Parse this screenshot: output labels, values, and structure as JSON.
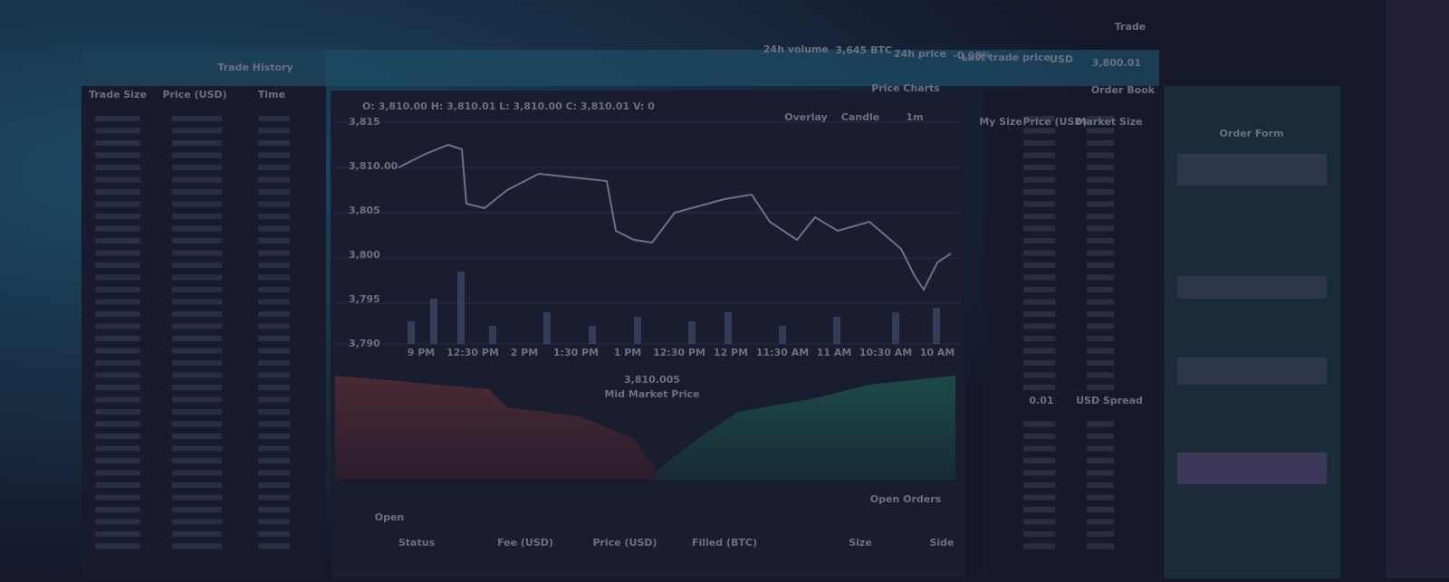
{
  "header": {
    "tab": "Trade",
    "last_price": "3,800.01",
    "last_price_unit": "USD",
    "last_price_label": "Last trade price",
    "change": "-0.08%",
    "change_label": "24h price",
    "volume": "3,645 BTC",
    "volume_label": "24h volume"
  },
  "trade_history": {
    "title": "Trade History",
    "columns": [
      "Trade Size",
      "Price (USD)",
      "Time"
    ]
  },
  "price_chart": {
    "title": "Price Charts",
    "ohlc": "O: 3,810.00   H: 3,810.01   L: 3,810.00   C: 3,810.01   V: 0",
    "controls": [
      "1m",
      "Candle",
      "Overlay"
    ],
    "y_labels": [
      "3,815",
      "3,810.00",
      "3,805",
      "3,800",
      "3,795",
      "3,790"
    ],
    "x_labels": [
      "9 PM",
      "12:30 PM",
      "2 PM",
      "1:30 PM",
      "1 PM",
      "12:30 PM",
      "12 PM",
      "11:30 AM",
      "11 AM",
      "10:30 AM",
      "10 AM"
    ]
  },
  "depth_chart": {
    "mid_price": "3,810.005",
    "mid_label": "Mid Market Price"
  },
  "order_book": {
    "title": "Order Book",
    "columns": [
      "Market Size",
      "Price (USD)",
      "My Size"
    ],
    "spread_label": "USD Spread",
    "spread": "0.01"
  },
  "open_orders": {
    "title": "Open Orders",
    "tab": "Open",
    "columns": [
      "Side",
      "Size",
      "Filled (BTC)",
      "Price (USD)",
      "Fee (USD)",
      "Status"
    ]
  },
  "order_form": {
    "title": "Order Form"
  }
}
